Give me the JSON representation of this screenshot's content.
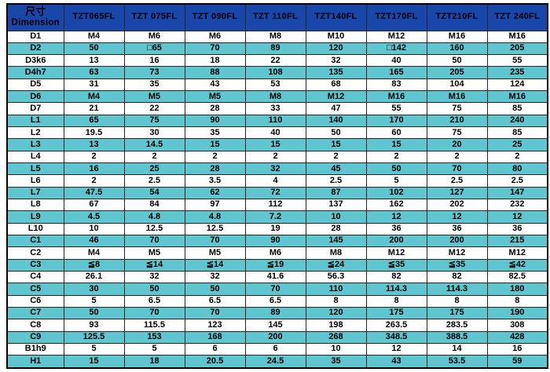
{
  "table": {
    "header": {
      "dim_label_zh": "尺寸",
      "dim_label_en": "Dimension",
      "columns": [
        "TZT065FL",
        "TZT 075FL",
        "TZT 090FL",
        "TZT 110FL",
        "TZT140FL",
        "TZT170FL",
        "TZT210FL",
        "TZT 240FL"
      ]
    },
    "rows": [
      {
        "label": "D1",
        "values": [
          "M4",
          "M6",
          "M6",
          "M8",
          "M10",
          "M12",
          "M16",
          "M16"
        ]
      },
      {
        "label": "D2",
        "values": [
          "50",
          "□65",
          "70",
          "89",
          "120",
          "□142",
          "160",
          "205"
        ]
      },
      {
        "label": "D3k6",
        "values": [
          "13",
          "16",
          "18",
          "22",
          "32",
          "40",
          "50",
          "55"
        ]
      },
      {
        "label": "D4h7",
        "values": [
          "63",
          "73",
          "88",
          "108",
          "135",
          "165",
          "205",
          "235"
        ]
      },
      {
        "label": "D5",
        "values": [
          "31",
          "35",
          "43",
          "53",
          "68",
          "83",
          "104",
          "124"
        ]
      },
      {
        "label": "D6",
        "values": [
          "M4",
          "M5",
          "M5",
          "M8",
          "M12",
          "M16",
          "M16",
          "M16"
        ]
      },
      {
        "label": "D7",
        "values": [
          "21",
          "22",
          "28",
          "33",
          "47",
          "55",
          "75",
          "85"
        ]
      },
      {
        "label": "L1",
        "values": [
          "65",
          "75",
          "90",
          "110",
          "140",
          "170",
          "210",
          "240"
        ]
      },
      {
        "label": "L2",
        "values": [
          "19.5",
          "30",
          "35",
          "40",
          "50",
          "60",
          "75",
          "85"
        ]
      },
      {
        "label": "L3",
        "values": [
          "13",
          "14.5",
          "15",
          "15",
          "15",
          "15",
          "20",
          "25"
        ]
      },
      {
        "label": "L4",
        "values": [
          "2",
          "2",
          "2",
          "2",
          "2",
          "2",
          "2",
          "2"
        ]
      },
      {
        "label": "L5",
        "values": [
          "16",
          "25",
          "28",
          "32",
          "45",
          "50",
          "70",
          "80"
        ]
      },
      {
        "label": "L6",
        "values": [
          "2",
          "2.5",
          "3.5",
          "4",
          "2.5",
          "5",
          "2.5",
          "2.5"
        ]
      },
      {
        "label": "L7",
        "values": [
          "47.5",
          "54",
          "62",
          "72",
          "87",
          "102",
          "127",
          "147"
        ]
      },
      {
        "label": "L8",
        "values": [
          "67",
          "84",
          "97",
          "112",
          "137",
          "162",
          "202",
          "232"
        ]
      },
      {
        "label": "L9",
        "values": [
          "4.5",
          "4.8",
          "4.8",
          "7.2",
          "10",
          "12",
          "12",
          "12"
        ]
      },
      {
        "label": "L10",
        "values": [
          "10",
          "12.5",
          "12.5",
          "19",
          "28",
          "36",
          "36",
          "36"
        ]
      },
      {
        "label": "C1",
        "values": [
          "46",
          "70",
          "70",
          "90",
          "145",
          "200",
          "200",
          "215"
        ]
      },
      {
        "label": "C2",
        "values": [
          "M4",
          "M5",
          "M5",
          "M6",
          "M8",
          "M12",
          "M12",
          "M12"
        ]
      },
      {
        "label": "C3",
        "values": [
          "≦8",
          "≦14",
          "≦14",
          "≦19",
          "≦24",
          "≦35",
          "≦35",
          "≦42"
        ]
      },
      {
        "label": "C4",
        "values": [
          "26.1",
          "32",
          "32",
          "41.6",
          "56.3",
          "82",
          "82",
          "82.5"
        ]
      },
      {
        "label": "C5",
        "values": [
          "30",
          "50",
          "50",
          "70",
          "110",
          "114.3",
          "114.3",
          "180"
        ]
      },
      {
        "label": "C6",
        "values": [
          "5",
          "6.5",
          "6.5",
          "6.5",
          "8",
          "8",
          "8",
          "8"
        ]
      },
      {
        "label": "C7",
        "values": [
          "50",
          "70",
          "70",
          "89",
          "120",
          "175",
          "175",
          "190"
        ]
      },
      {
        "label": "C8",
        "values": [
          "93",
          "115.5",
          "123",
          "145",
          "198",
          "263.5",
          "283.5",
          "308"
        ]
      },
      {
        "label": "C9",
        "values": [
          "125.5",
          "153",
          "168",
          "200",
          "268",
          "348.5",
          "388.5",
          "428"
        ]
      },
      {
        "label": "B1h9",
        "values": [
          "5",
          "5",
          "6",
          "6",
          "10",
          "12",
          "14",
          "16"
        ]
      },
      {
        "label": "H1",
        "values": [
          "15",
          "18",
          "20.5",
          "24.5",
          "35",
          "43",
          "53.5",
          "59"
        ]
      }
    ],
    "colors": {
      "header_bg": "#1946a9",
      "header_text": "#ffffff",
      "row_bg": "#ffffff",
      "row_alt_bg": "#5fc5ce",
      "body_text": "#000000",
      "border": "#262626"
    }
  }
}
